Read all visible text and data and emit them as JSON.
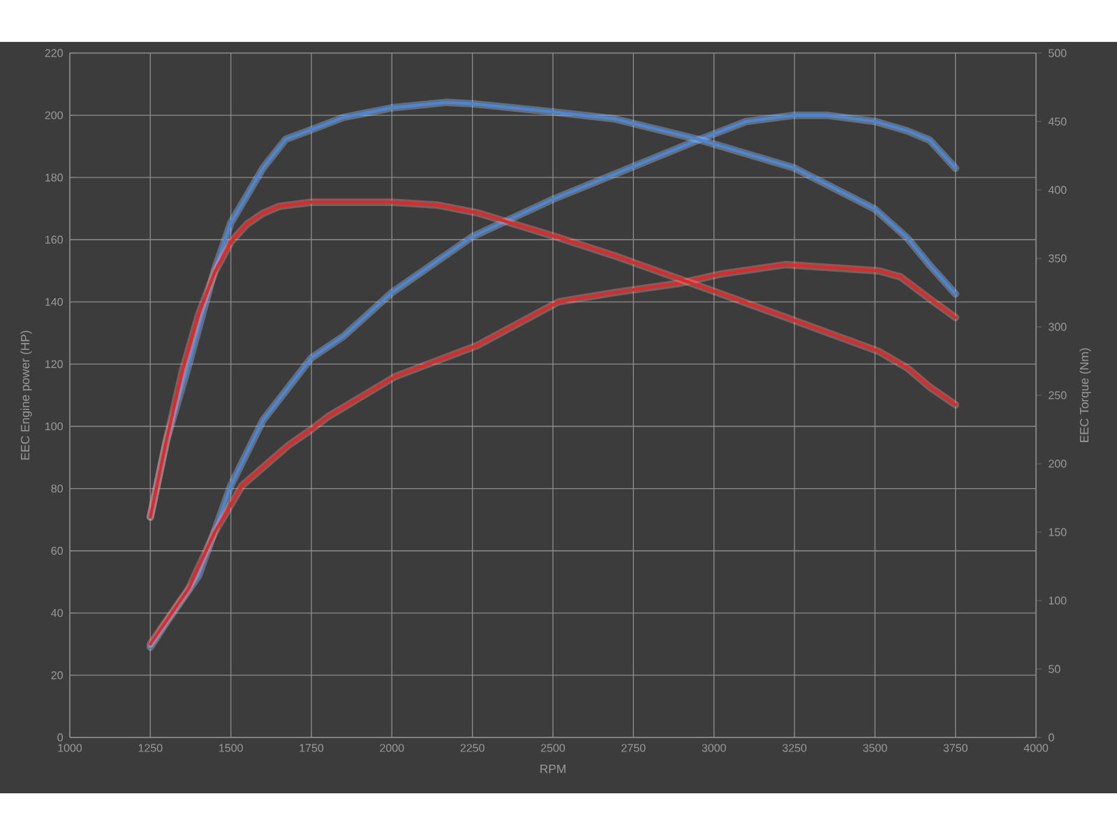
{
  "chart_data": {
    "type": "line",
    "xlabel": "RPM",
    "ylabel": "EEC Engine power (HP)",
    "y2label": "EEC Torque (Nm)",
    "xlim": [
      1000,
      4000
    ],
    "xticks": [
      1000,
      1250,
      1500,
      1750,
      2000,
      2250,
      2500,
      2750,
      3000,
      3250,
      3500,
      3750,
      4000
    ],
    "ylim": [
      0,
      220
    ],
    "yticks": [
      0,
      20,
      40,
      60,
      80,
      100,
      120,
      140,
      160,
      180,
      200,
      220
    ],
    "y2lim": [
      0,
      500
    ],
    "y2ticks": [
      0,
      50,
      100,
      150,
      200,
      250,
      300,
      350,
      400,
      450,
      500
    ],
    "grid": true,
    "marker": "none",
    "line_style": "solid",
    "series": [
      {
        "color": "#4a86d8",
        "axis": "y2",
        "x": [
          1250,
          1300,
          1370,
          1450,
          1500,
          1600,
          1670,
          1750,
          1850,
          2000,
          2170,
          2250,
          2500,
          2690,
          2950,
          3250,
          3500,
          3600,
          3670,
          3750
        ],
        "values": [
          161,
          217,
          273,
          342,
          376,
          416,
          437,
          444,
          453,
          460,
          464,
          463,
          457,
          452,
          437,
          416,
          386,
          365,
          345,
          324
        ]
      },
      {
        "color": "#4a86d8",
        "x": [
          1250,
          1300,
          1400,
          1500,
          1600,
          1750,
          1850,
          2000,
          2250,
          2500,
          2690,
          2950,
          3100,
          3250,
          3350,
          3500,
          3600,
          3670,
          3750
        ],
        "values": [
          29,
          37,
          52,
          81,
          102,
          122,
          129,
          143,
          161,
          173,
          181,
          192,
          198,
          200,
          200,
          198,
          195,
          192,
          183
        ]
      },
      {
        "color": "#e02828",
        "axis": "y2",
        "x": [
          1250,
          1300,
          1350,
          1400,
          1450,
          1500,
          1550,
          1600,
          1650,
          1750,
          2000,
          2140,
          2270,
          2520,
          2690,
          2893,
          3023,
          3222,
          3512,
          3600,
          3670,
          3750
        ],
        "values": [
          161,
          217,
          268,
          309,
          340,
          362,
          375,
          383,
          388,
          391,
          391,
          389,
          383,
          365,
          352,
          335,
          324,
          307,
          282,
          270,
          256,
          243
        ]
      },
      {
        "color": "#e02828",
        "x": [
          1250,
          1370,
          1450,
          1535,
          1680,
          1750,
          1800,
          2010,
          2265,
          2517,
          2690,
          2893,
          3023,
          3222,
          3512,
          3580,
          3670,
          3750
        ],
        "values": [
          30,
          48,
          66,
          81,
          94,
          99,
          103,
          116,
          126,
          140,
          143,
          146,
          149,
          152,
          150,
          148,
          141,
          135
        ]
      }
    ]
  }
}
